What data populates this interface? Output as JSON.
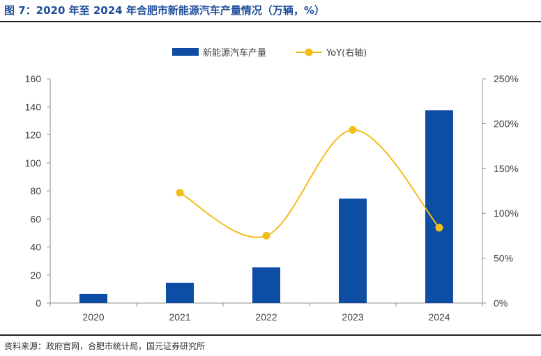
{
  "title": "图 7：2020 年至 2024 年合肥市新能源汽车产量情况（万辆，%）",
  "source": "资料来源：政府官网，合肥市统计局，国元证券研究所",
  "colors": {
    "bar": "#0e4da4",
    "line": "#f2bd1a",
    "title": "#1f4e9c"
  },
  "chart_data": {
    "type": "bar+line",
    "categories": [
      "2020",
      "2021",
      "2022",
      "2023",
      "2024"
    ],
    "series": [
      {
        "name": "新能源汽车产量",
        "type": "bar",
        "axis": "left",
        "values": [
          6.5,
          14.5,
          25.5,
          74.5,
          137.5
        ]
      },
      {
        "name": "YoY(右轴)",
        "type": "line",
        "axis": "right",
        "values": [
          null,
          1.23,
          0.75,
          1.93,
          0.84
        ]
      }
    ],
    "y_left": {
      "min": 0,
      "max": 160,
      "ticks": [
        "0",
        "20",
        "40",
        "60",
        "80",
        "100",
        "120",
        "140",
        "160"
      ]
    },
    "y_right": {
      "min": 0,
      "max": 2.5,
      "ticks": [
        "0%",
        "50%",
        "100%",
        "150%",
        "200%",
        "250%"
      ]
    },
    "legend_position": "top-center",
    "grid": false
  }
}
